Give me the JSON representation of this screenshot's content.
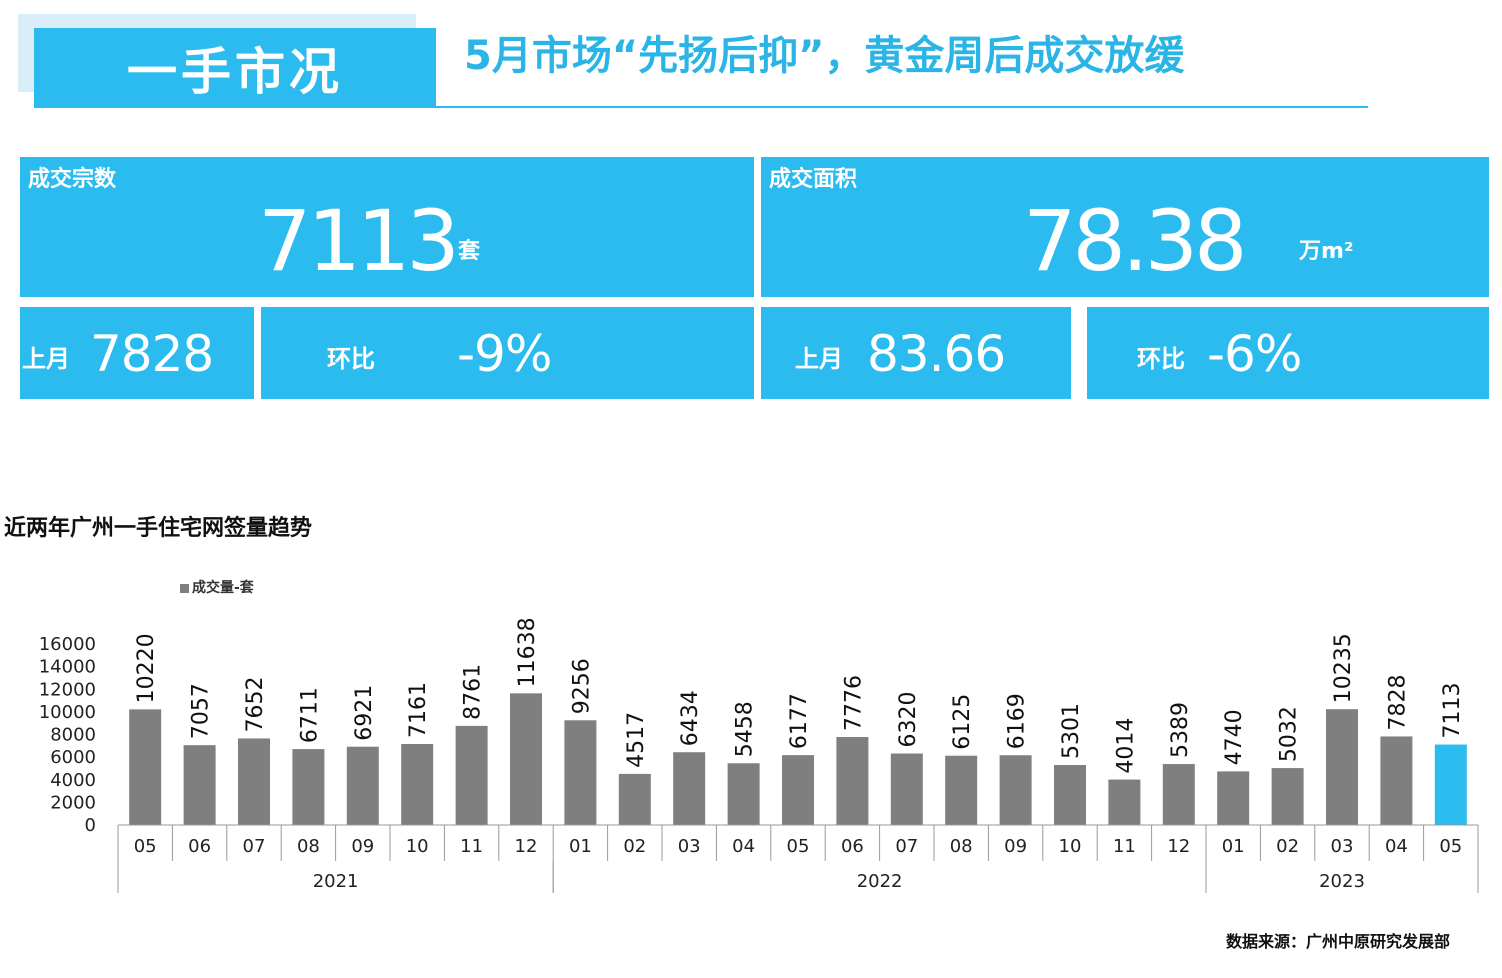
{
  "header": {
    "section": "一手市况",
    "title": "5月市场“先扬后抑”，黄金周后成交放缓"
  },
  "kpi": {
    "deals": {
      "label": "成交宗数",
      "value": "7113",
      "unit": "套",
      "prev_label": "上月",
      "prev_value": "7828",
      "mom_label": "环比",
      "mom_value": "-9%"
    },
    "area": {
      "label": "成交面积",
      "value": "78.38",
      "unit": "万m²",
      "prev_label": "上月",
      "prev_value": "83.66",
      "mom_label": "环比",
      "mom_value": "-6%"
    }
  },
  "colors": {
    "accent": "#2bbbee",
    "bar": "#7f7f7f",
    "highlight_bar": "#2bbbee"
  },
  "chart_title": "近两年广州一手住宅网签量趋势",
  "source": "数据来源：广州中原研究发展部",
  "chart_data": {
    "type": "bar",
    "title": "近两年广州一手住宅网签量趋势",
    "legend": {
      "label": "成交量-套",
      "position": "top-left"
    },
    "categories": [
      "05",
      "06",
      "07",
      "08",
      "09",
      "10",
      "11",
      "12",
      "01",
      "02",
      "03",
      "04",
      "05",
      "06",
      "07",
      "08",
      "09",
      "10",
      "11",
      "12",
      "01",
      "02",
      "03",
      "04",
      "05"
    ],
    "years": [
      {
        "label": "2021",
        "start": 0,
        "end": 7
      },
      {
        "label": "2022",
        "start": 8,
        "end": 19
      },
      {
        "label": "2023",
        "start": 20,
        "end": 24
      }
    ],
    "series": [
      {
        "name": "成交量-套",
        "values": [
          10220,
          7057,
          7652,
          6711,
          6921,
          7161,
          8761,
          11638,
          9256,
          4517,
          6434,
          5458,
          6177,
          7776,
          6320,
          6125,
          6169,
          5301,
          4014,
          5389,
          4740,
          5032,
          10235,
          7828,
          7113
        ]
      }
    ],
    "highlight_index": 24,
    "ylim": [
      0,
      16000
    ],
    "yticks": [
      0,
      2000,
      4000,
      6000,
      8000,
      10000,
      12000,
      14000,
      16000
    ],
    "grid": false
  }
}
